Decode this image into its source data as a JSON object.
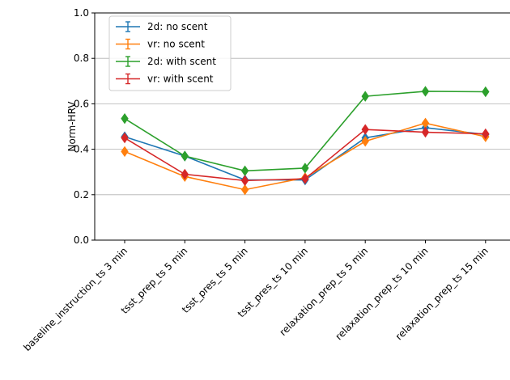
{
  "chart_data": {
    "type": "line",
    "ylabel": "Norm-HRV",
    "xlabel": "",
    "ylim": [
      0.0,
      1.0
    ],
    "yticks": [
      "0.0",
      "0.2",
      "0.4",
      "0.6",
      "0.8",
      "1.0"
    ],
    "grid": "horizontal",
    "legend_position": "top-left",
    "categories": [
      "baseline_instruction_ts 3 min",
      "tsst_prep_ts 5 min",
      "tsst_pres_ts 5 min",
      "tsst_pres_ts 10 min",
      "relaxation_prep_ts 5 min",
      "relaxation_prep_ts 10 min",
      "relaxation_prep_ts 15 min"
    ],
    "series": [
      {
        "name": "2d: no scent",
        "color": "#1f77b4",
        "values": [
          0.455,
          0.37,
          0.265,
          0.265,
          0.45,
          0.495,
          0.465
        ]
      },
      {
        "name": "vr: no scent",
        "color": "#ff7f0e",
        "values": [
          0.39,
          0.28,
          0.222,
          0.275,
          0.435,
          0.515,
          0.455
        ]
      },
      {
        "name": "2d: with scent",
        "color": "#2ca02c",
        "values": [
          0.535,
          0.37,
          0.305,
          0.317,
          0.633,
          0.655,
          0.653
        ]
      },
      {
        "name": "vr: with scent",
        "color": "#d62728",
        "values": [
          0.45,
          0.29,
          0.262,
          0.27,
          0.487,
          0.475,
          0.468
        ]
      }
    ]
  }
}
